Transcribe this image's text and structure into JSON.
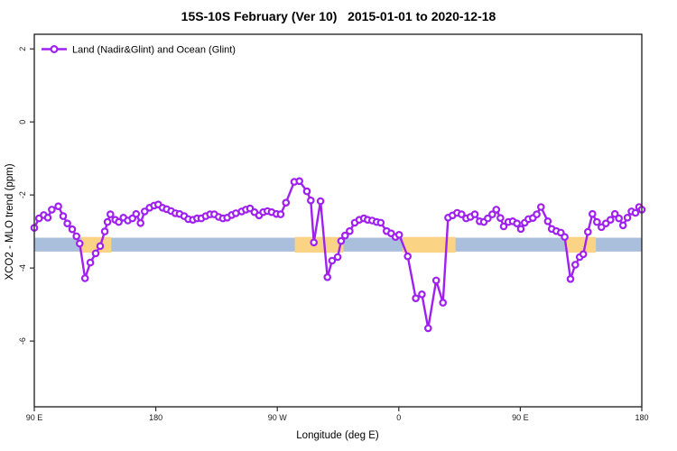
{
  "chart_data": {
    "type": "line",
    "title": "15S-10S February (Ver 10)   2015-01-01 to 2020-12-18",
    "xlabel": "Longitude (deg E)",
    "ylabel": "XCO2 - MLO trend (ppm)",
    "xlim": [
      90,
      540
    ],
    "ylim": [
      -7.8,
      2.4
    ],
    "grid": false,
    "x_ticks": [
      {
        "value": 90,
        "label": "90 E"
      },
      {
        "value": 180,
        "label": "180"
      },
      {
        "value": 270,
        "label": "90 W"
      },
      {
        "value": 360,
        "label": "0"
      },
      {
        "value": 450,
        "label": "90 E"
      },
      {
        "value": 540,
        "label": "180"
      }
    ],
    "y_ticks": [
      {
        "value": 2,
        "label": "2"
      },
      {
        "value": 0,
        "label": "0"
      },
      {
        "value": -2,
        "label": "-2"
      },
      {
        "value": -4,
        "label": "-4"
      },
      {
        "value": -6,
        "label": "-6"
      }
    ],
    "legend": {
      "position": "top-left",
      "entries": [
        {
          "label": "Land (Nadir&Glint) and Ocean (Glint)",
          "color": "#a020f0",
          "marker": "open-circle"
        }
      ]
    },
    "bands": [
      {
        "name": "ocean-reference-band",
        "color": "#a9bfdc",
        "x_from": 90,
        "x_to": 540,
        "y_from": -3.55,
        "y_to": -3.17
      },
      {
        "name": "land-patch-1",
        "color": "#fbd385",
        "x_from": 125,
        "x_to": 147,
        "y_from": -3.58,
        "y_to": -3.15
      },
      {
        "name": "land-patch-2",
        "color": "#fbd385",
        "x_from": 283,
        "x_to": 319,
        "y_from": -3.58,
        "y_to": -3.15
      },
      {
        "name": "land-patch-3",
        "color": "#fbd385",
        "x_from": 363,
        "x_to": 402,
        "y_from": -3.58,
        "y_to": -3.15
      },
      {
        "name": "land-patch-4",
        "color": "#fbd385",
        "x_from": 484,
        "x_to": 506,
        "y_from": -3.58,
        "y_to": -3.15
      }
    ],
    "series": [
      {
        "name": "Land (Nadir&Glint) and Ocean (Glint)",
        "color": "#a020f0",
        "marker": "open-circle",
        "points": [
          [
            90.0,
            -2.9
          ],
          [
            93.5,
            -2.64
          ],
          [
            97.0,
            -2.55
          ],
          [
            100.0,
            -2.62
          ],
          [
            103.0,
            -2.4
          ],
          [
            107.8,
            -2.31
          ],
          [
            111.4,
            -2.58
          ],
          [
            114.5,
            -2.78
          ],
          [
            118.1,
            -2.94
          ],
          [
            121.2,
            -3.13
          ],
          [
            123.6,
            -3.33
          ],
          [
            127.6,
            -4.28
          ],
          [
            131.5,
            -3.85
          ],
          [
            135.5,
            -3.6
          ],
          [
            138.8,
            -3.4
          ],
          [
            142.2,
            -3.0
          ],
          [
            144.2,
            -2.74
          ],
          [
            146.4,
            -2.53
          ],
          [
            150.0,
            -2.68
          ],
          [
            152.6,
            -2.74
          ],
          [
            156.0,
            -2.62
          ],
          [
            159.3,
            -2.7
          ],
          [
            162.7,
            -2.64
          ],
          [
            165.4,
            -2.52
          ],
          [
            168.7,
            -2.77
          ],
          [
            171.8,
            -2.45
          ],
          [
            175.4,
            -2.35
          ],
          [
            178.7,
            -2.29
          ],
          [
            181.8,
            -2.26
          ],
          [
            185.0,
            -2.35
          ],
          [
            188.1,
            -2.39
          ],
          [
            191.4,
            -2.44
          ],
          [
            194.5,
            -2.5
          ],
          [
            197.6,
            -2.52
          ],
          [
            201.0,
            -2.58
          ],
          [
            204.1,
            -2.66
          ],
          [
            207.5,
            -2.68
          ],
          [
            210.6,
            -2.64
          ],
          [
            213.7,
            -2.64
          ],
          [
            217.0,
            -2.58
          ],
          [
            220.2,
            -2.53
          ],
          [
            223.3,
            -2.53
          ],
          [
            226.6,
            -2.6
          ],
          [
            229.7,
            -2.64
          ],
          [
            232.9,
            -2.62
          ],
          [
            236.2,
            -2.55
          ],
          [
            239.3,
            -2.5
          ],
          [
            243.6,
            -2.45
          ],
          [
            246.7,
            -2.4
          ],
          [
            249.8,
            -2.37
          ],
          [
            253.1,
            -2.47
          ],
          [
            256.5,
            -2.56
          ],
          [
            259.6,
            -2.47
          ],
          [
            262.7,
            -2.44
          ],
          [
            265.8,
            -2.47
          ],
          [
            269.4,
            -2.52
          ],
          [
            272.5,
            -2.53
          ],
          [
            276.4,
            -2.21
          ],
          [
            282.6,
            -1.64
          ],
          [
            286.4,
            -1.62
          ],
          [
            291.9,
            -1.9
          ],
          [
            294.8,
            -2.15
          ],
          [
            297.1,
            -3.3
          ],
          [
            302.0,
            -2.17
          ],
          [
            307.1,
            -4.25
          ],
          [
            310.6,
            -3.8
          ],
          [
            314.7,
            -3.7
          ],
          [
            317.3,
            -3.26
          ],
          [
            320.2,
            -3.11
          ],
          [
            323.6,
            -2.99
          ],
          [
            327.4,
            -2.76
          ],
          [
            330.7,
            -2.68
          ],
          [
            334.1,
            -2.64
          ],
          [
            336.9,
            -2.68
          ],
          [
            340.3,
            -2.7
          ],
          [
            343.6,
            -2.74
          ],
          [
            346.6,
            -2.76
          ],
          [
            351.0,
            -2.99
          ],
          [
            354.3,
            -3.05
          ],
          [
            357.5,
            -3.15
          ],
          [
            360.3,
            -3.09
          ],
          [
            366.6,
            -3.68
          ],
          [
            372.6,
            -4.83
          ],
          [
            377.1,
            -4.72
          ],
          [
            381.7,
            -5.65
          ],
          [
            387.7,
            -4.34
          ],
          [
            392.7,
            -4.95
          ],
          [
            396.5,
            -2.62
          ],
          [
            399.8,
            -2.56
          ],
          [
            403.2,
            -2.49
          ],
          [
            406.5,
            -2.53
          ],
          [
            409.9,
            -2.64
          ],
          [
            413.0,
            -2.6
          ],
          [
            416.3,
            -2.53
          ],
          [
            419.9,
            -2.72
          ],
          [
            423.0,
            -2.74
          ],
          [
            425.9,
            -2.64
          ],
          [
            429.3,
            -2.53
          ],
          [
            432.2,
            -2.4
          ],
          [
            435.3,
            -2.63
          ],
          [
            437.7,
            -2.86
          ],
          [
            441.1,
            -2.74
          ],
          [
            444.4,
            -2.72
          ],
          [
            447.5,
            -2.78
          ],
          [
            450.4,
            -2.93
          ],
          [
            453.3,
            -2.76
          ],
          [
            456.0,
            -2.66
          ],
          [
            459.3,
            -2.63
          ],
          [
            462.2,
            -2.53
          ],
          [
            465.3,
            -2.33
          ],
          [
            470.4,
            -2.72
          ],
          [
            473.3,
            -2.93
          ],
          [
            476.7,
            -2.99
          ],
          [
            480.0,
            -3.03
          ],
          [
            482.9,
            -3.15
          ],
          [
            487.2,
            -4.3
          ],
          [
            490.7,
            -3.91
          ],
          [
            494.0,
            -3.7
          ],
          [
            496.7,
            -3.62
          ],
          [
            500.1,
            -3.01
          ],
          [
            503.4,
            -2.52
          ],
          [
            506.8,
            -2.74
          ],
          [
            510.1,
            -2.88
          ],
          [
            513.4,
            -2.78
          ],
          [
            516.8,
            -2.68
          ],
          [
            520.1,
            -2.52
          ],
          [
            523.1,
            -2.64
          ],
          [
            526.1,
            -2.83
          ],
          [
            529.4,
            -2.62
          ],
          [
            532.4,
            -2.45
          ],
          [
            535.3,
            -2.49
          ],
          [
            538.0,
            -2.33
          ],
          [
            540.0,
            -2.4
          ]
        ]
      }
    ]
  }
}
